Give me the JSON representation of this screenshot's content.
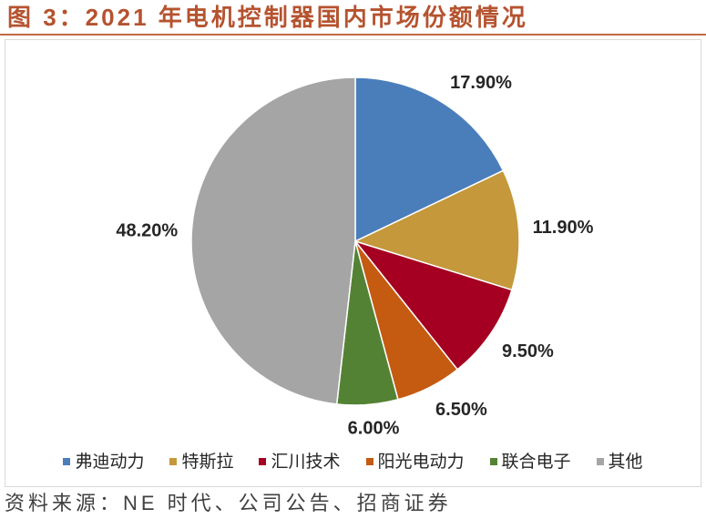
{
  "colors": {
    "background": "#FFFFFF",
    "title": "#B5532F",
    "title_rule": "#C06A45",
    "frame": "#D9D9D9",
    "label_text": "#262626",
    "legend_text": "#262626",
    "source_text": "#404040",
    "slice_border": "#FFFFFF"
  },
  "chart_data": {
    "type": "pie",
    "title": "图 3：2021 年电机控制器国内市场份额情况",
    "categories": [
      "弗迪动力",
      "特斯拉",
      "汇川技术",
      "阳光电动力",
      "联合电子",
      "其他"
    ],
    "values": [
      17.9,
      11.9,
      9.5,
      6.5,
      6.0,
      48.2
    ],
    "data_labels": [
      "17.90%",
      "11.90%",
      "9.50%",
      "6.50%",
      "6.00%",
      "48.20%"
    ],
    "colors": [
      "#4A7EBB",
      "#C4983B",
      "#A50021",
      "#C55A11",
      "#548235",
      "#A5A5A5"
    ],
    "legend_position": "bottom"
  },
  "source": "资料来源：NE 时代、公司公告、招商证券"
}
